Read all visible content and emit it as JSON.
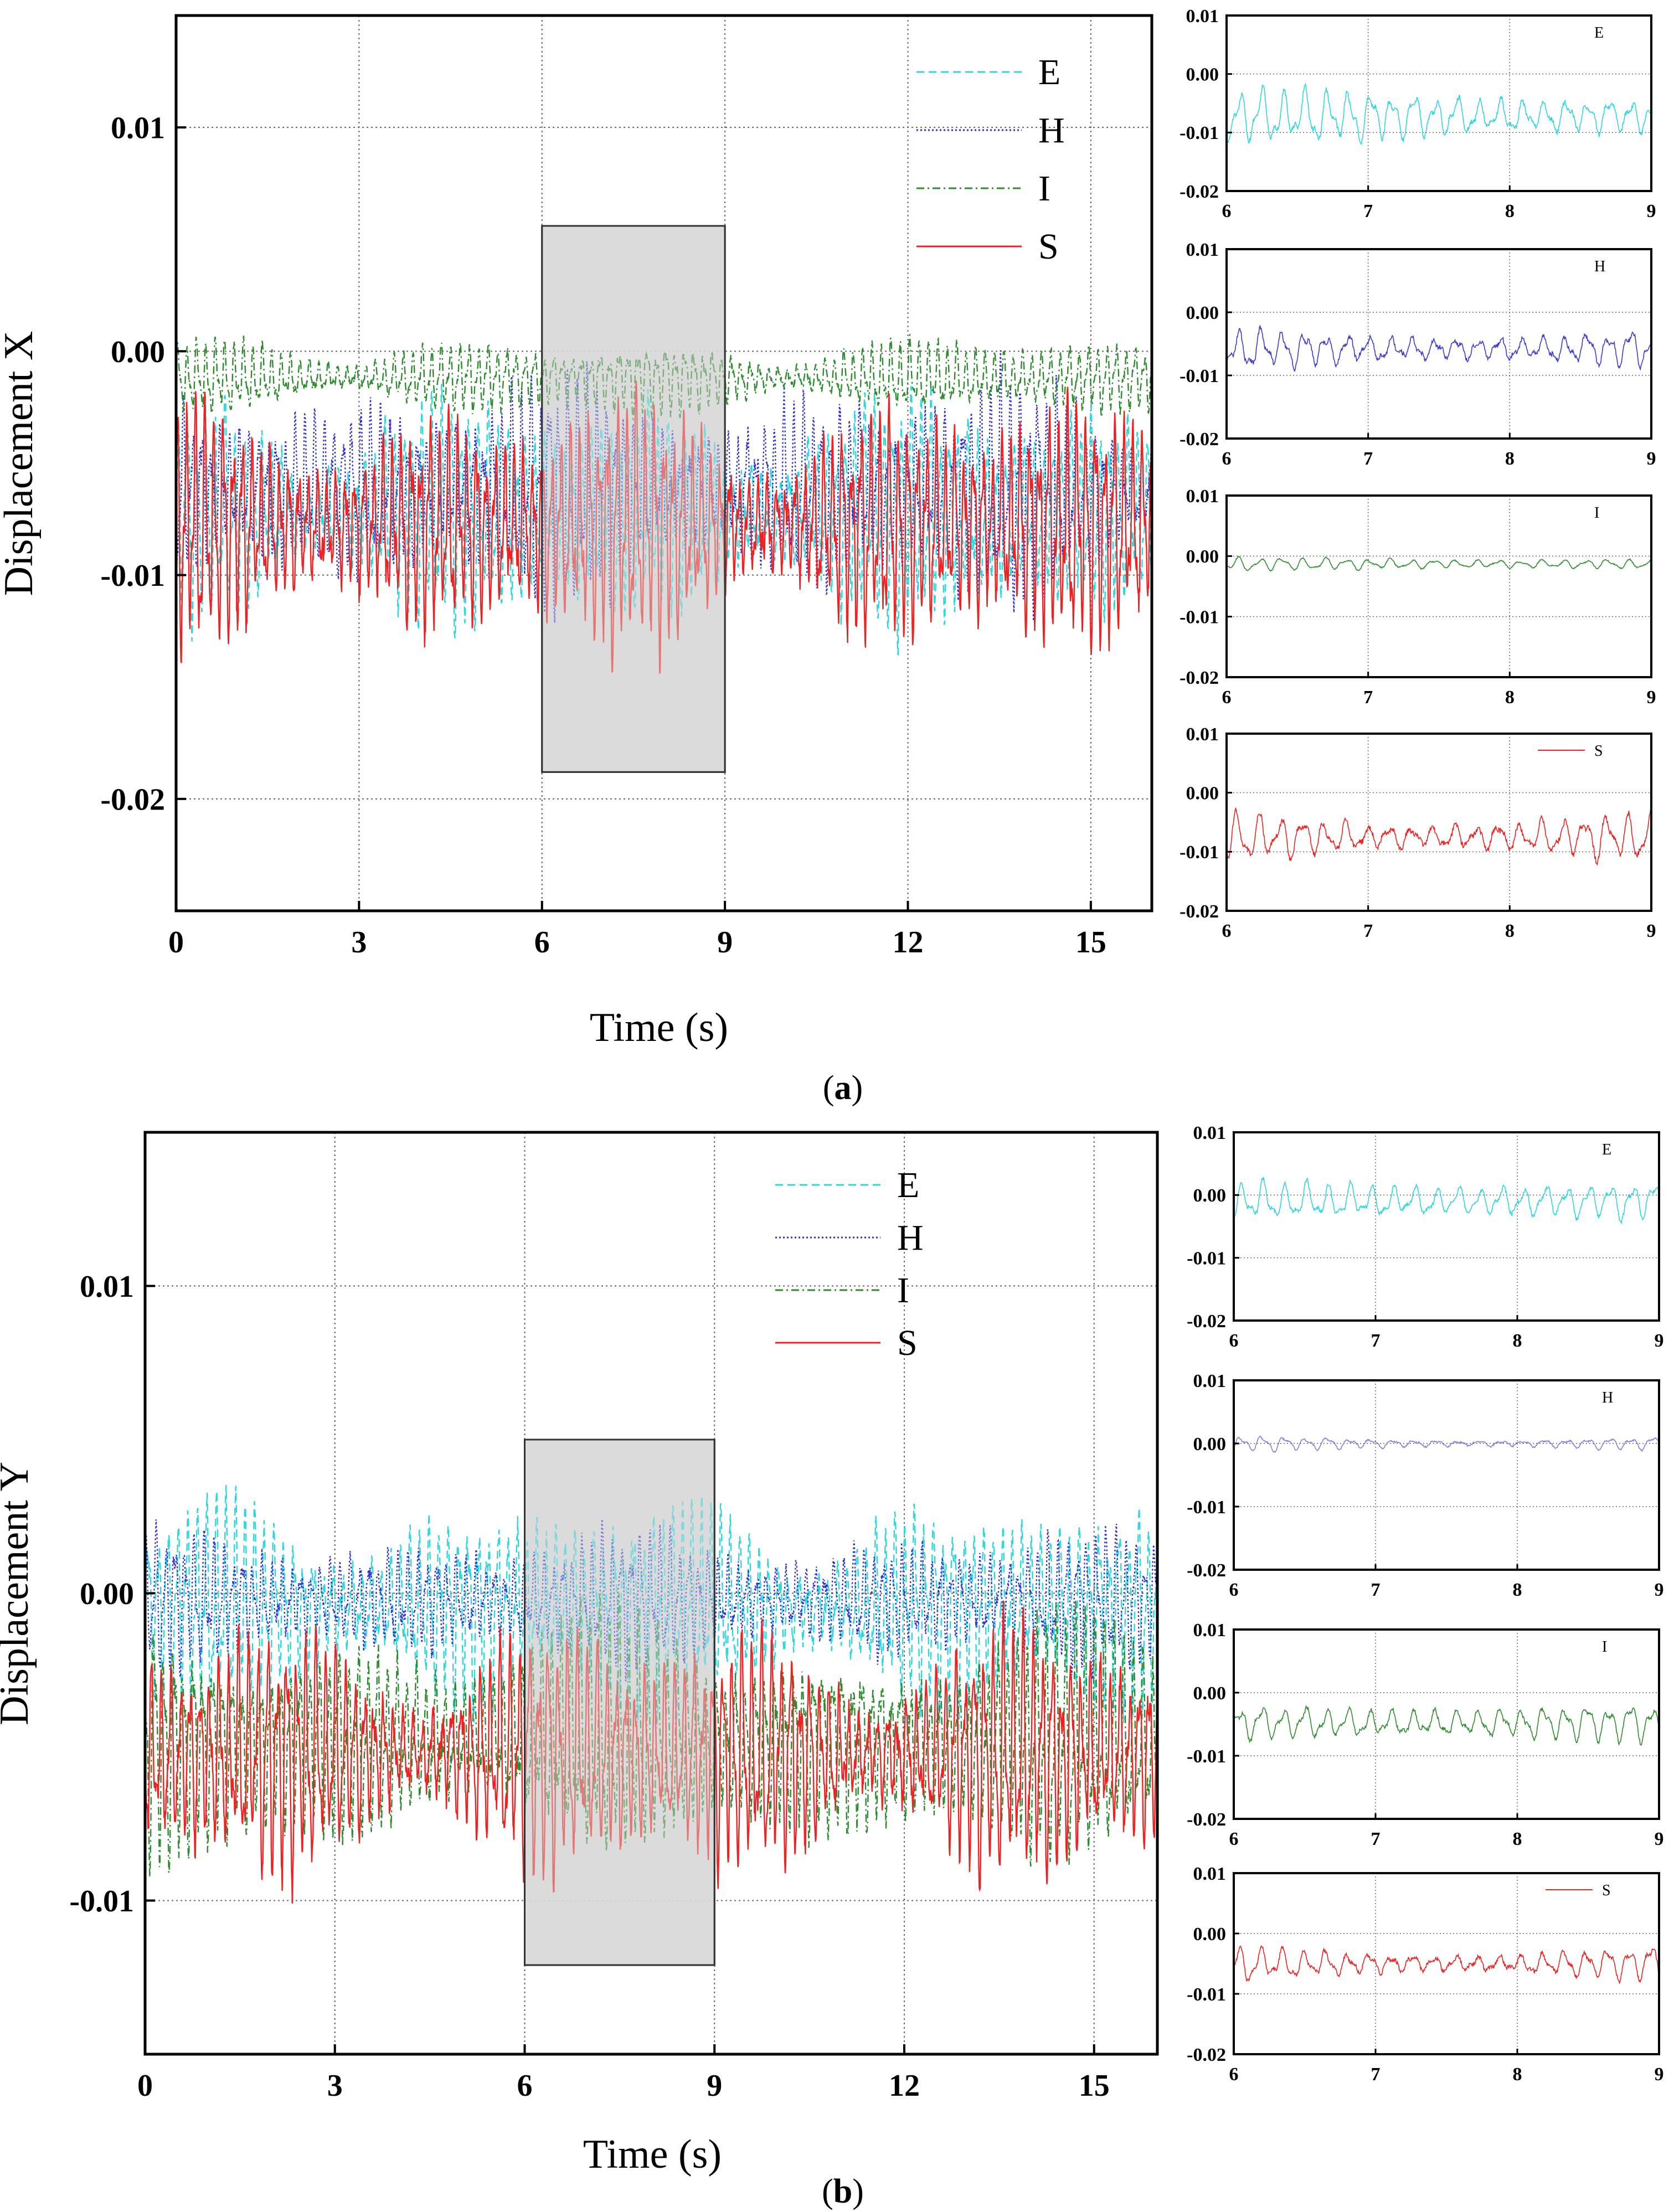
{
  "chart_data": [
    {
      "id": "a-main",
      "type": "line",
      "caption": "a",
      "xlabel": "Time (s)",
      "ylabel": "Displacement X",
      "xlim": [
        0,
        16
      ],
      "ylim": [
        -0.025,
        0.015
      ],
      "xticks": [
        0,
        3,
        6,
        9,
        12,
        15
      ],
      "xtick_labels": [
        "0",
        "3",
        "6",
        "9",
        "12",
        "15"
      ],
      "yticks": [
        -0.02,
        -0.01,
        0.0,
        0.01
      ],
      "ytick_labels": [
        "-0.02",
        "-0.01",
        "0.00",
        "0.01"
      ],
      "grid": true,
      "legend_position": "top-right",
      "highlight": {
        "x": [
          6,
          9
        ],
        "y": [
          -0.0188,
          0.0056
        ]
      },
      "series": [
        {
          "name": "E",
          "color": "#2fd6dc",
          "dash": "dashed",
          "mean": -0.0072,
          "amplitude": 0.0052,
          "seed": 11
        },
        {
          "name": "H",
          "color": "#2f2fd0",
          "dash": "dotted",
          "mean": -0.0062,
          "amplitude": 0.005,
          "seed": 23
        },
        {
          "name": "I",
          "color": "#2e8b2e",
          "dash": "dashdot",
          "mean": -0.0012,
          "amplitude": 0.0017,
          "seed": 37
        },
        {
          "name": "S",
          "color": "#ee2222",
          "dash": "solid",
          "mean": -0.0078,
          "amplitude": 0.0056,
          "seed": 41
        }
      ]
    },
    {
      "id": "a-inset-E",
      "type": "line",
      "xlim": [
        6,
        9
      ],
      "ylim": [
        -0.02,
        0.01
      ],
      "xticks": [
        6,
        7,
        8,
        9
      ],
      "xtick_labels": [
        "6",
        "7",
        "8",
        "9"
      ],
      "yticks": [
        -0.02,
        -0.01,
        0.0,
        0.01
      ],
      "ytick_labels": [
        "-0.02",
        "-0.01",
        "0.00",
        "0.01"
      ],
      "legend": "E",
      "series": [
        {
          "name": "E",
          "color": "#2fd6dc",
          "mean": -0.0072,
          "amplitude": 0.0046,
          "seed": 51
        }
      ]
    },
    {
      "id": "a-inset-H",
      "type": "line",
      "xlim": [
        6,
        9
      ],
      "ylim": [
        -0.02,
        0.01
      ],
      "xticks": [
        6,
        7,
        8,
        9
      ],
      "xtick_labels": [
        "6",
        "7",
        "8",
        "9"
      ],
      "yticks": [
        -0.02,
        -0.01,
        0.0,
        0.01
      ],
      "ytick_labels": [
        "-0.02",
        "-0.01",
        "0.00",
        "0.01"
      ],
      "legend": "H",
      "series": [
        {
          "name": "H",
          "color": "#3a3ad6",
          "mean": -0.0058,
          "amplitude": 0.004,
          "seed": 52
        }
      ]
    },
    {
      "id": "a-inset-I",
      "type": "line",
      "xlim": [
        6,
        9
      ],
      "ylim": [
        -0.02,
        0.01
      ],
      "xticks": [
        6,
        7,
        8,
        9
      ],
      "xtick_labels": [
        "6",
        "7",
        "8",
        "9"
      ],
      "yticks": [
        -0.02,
        -0.01,
        0.0,
        0.01
      ],
      "ytick_labels": [
        "-0.02",
        "-0.01",
        "0.00",
        "0.01"
      ],
      "legend": "I",
      "series": [
        {
          "name": "I",
          "color": "#2e8b2e",
          "mean": -0.0013,
          "amplitude": 0.0011,
          "seed": 53
        }
      ]
    },
    {
      "id": "a-inset-S",
      "type": "line",
      "xlim": [
        6,
        9
      ],
      "ylim": [
        -0.02,
        0.01
      ],
      "xticks": [
        6,
        7,
        8,
        9
      ],
      "xtick_labels": [
        "6",
        "7",
        "8",
        "9"
      ],
      "yticks": [
        -0.02,
        -0.01,
        0.0,
        0.01
      ],
      "ytick_labels": [
        "-0.02",
        "-0.01",
        "0.00",
        "0.01"
      ],
      "legend": "S",
      "series": [
        {
          "name": "S",
          "color": "#ee2222",
          "mean": -0.0075,
          "amplitude": 0.0052,
          "seed": 54
        }
      ]
    },
    {
      "id": "b-main",
      "type": "line",
      "caption": "b",
      "xlabel": "Time (s)",
      "ylabel": "Displacement Y",
      "xlim": [
        0,
        16
      ],
      "ylim": [
        -0.015,
        0.015
      ],
      "xticks": [
        0,
        3,
        6,
        9,
        12,
        15
      ],
      "xtick_labels": [
        "0",
        "3",
        "6",
        "9",
        "12",
        "15"
      ],
      "yticks": [
        -0.01,
        0.0,
        0.01
      ],
      "ytick_labels": [
        "-0.01",
        "0.00",
        "0.01"
      ],
      "grid": true,
      "legend_position": "top-right",
      "highlight": {
        "x": [
          6,
          9
        ],
        "y": [
          -0.0121,
          0.005
        ]
      },
      "series": [
        {
          "name": "E",
          "color": "#2fd6dc",
          "dash": "dashed",
          "mean": -0.0005,
          "amplitude": 0.0036,
          "seed": 61
        },
        {
          "name": "H",
          "color": "#2f2fd0",
          "dash": "dotted",
          "mean": -0.0002,
          "amplitude": 0.0022,
          "seed": 67
        },
        {
          "name": "I",
          "color": "#2e8b2e",
          "dash": "dashdot",
          "mean": -0.0048,
          "amplitude": 0.004,
          "seed": 71
        },
        {
          "name": "S",
          "color": "#ee2222",
          "dash": "solid",
          "mean": -0.0052,
          "amplitude": 0.0042,
          "seed": 79
        }
      ]
    },
    {
      "id": "b-inset-E",
      "type": "line",
      "xlim": [
        6,
        9
      ],
      "ylim": [
        -0.02,
        0.01
      ],
      "xticks": [
        6,
        7,
        8,
        9
      ],
      "xtick_labels": [
        "6",
        "7",
        "8",
        "9"
      ],
      "yticks": [
        -0.02,
        -0.01,
        0.0,
        0.01
      ],
      "ytick_labels": [
        "-0.02",
        "-0.01",
        "0.00",
        "0.01"
      ],
      "legend": "E",
      "series": [
        {
          "name": "E",
          "color": "#2fd6dc",
          "mean": -0.001,
          "amplitude": 0.0034,
          "seed": 81
        }
      ]
    },
    {
      "id": "b-inset-H",
      "type": "line",
      "xlim": [
        6,
        9
      ],
      "ylim": [
        -0.02,
        0.01
      ],
      "xticks": [
        6,
        7,
        8,
        9
      ],
      "xtick_labels": [
        "6",
        "7",
        "8",
        "9"
      ],
      "yticks": [
        -0.02,
        -0.01,
        0.0,
        0.01
      ],
      "ytick_labels": [
        "-0.02",
        "-0.01",
        "0.00",
        "0.01"
      ],
      "legend": "H",
      "series": [
        {
          "name": "H",
          "color": "#8080e0",
          "mean": 0.0,
          "amplitude": 0.0014,
          "seed": 82
        }
      ]
    },
    {
      "id": "b-inset-I",
      "type": "line",
      "xlim": [
        6,
        9
      ],
      "ylim": [
        -0.02,
        0.01
      ],
      "xticks": [
        6,
        7,
        8,
        9
      ],
      "xtick_labels": [
        "6",
        "7",
        "8",
        "9"
      ],
      "yticks": [
        -0.02,
        -0.01,
        0.0,
        0.01
      ],
      "ytick_labels": [
        "-0.02",
        "-0.01",
        "0.00",
        "0.01"
      ],
      "legend": "I",
      "series": [
        {
          "name": "I",
          "color": "#2e8b2e",
          "mean": -0.0048,
          "amplitude": 0.0032,
          "seed": 83
        }
      ]
    },
    {
      "id": "b-inset-S",
      "type": "line",
      "xlim": [
        6,
        9
      ],
      "ylim": [
        -0.02,
        0.01
      ],
      "xticks": [
        6,
        7,
        8,
        9
      ],
      "xtick_labels": [
        "6",
        "7",
        "8",
        "9"
      ],
      "yticks": [
        -0.02,
        -0.01,
        0.0,
        0.01
      ],
      "ytick_labels": [
        "-0.02",
        "-0.01",
        "0.00",
        "0.01"
      ],
      "legend": "S",
      "series": [
        {
          "name": "S",
          "color": "#ee2222",
          "mean": -0.005,
          "amplitude": 0.0036,
          "seed": 84
        }
      ]
    }
  ]
}
